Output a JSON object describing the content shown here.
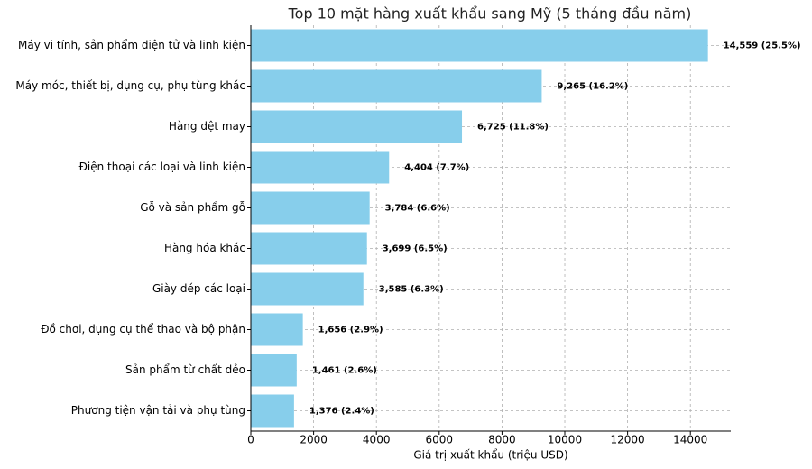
{
  "chart_data": {
    "type": "hbar",
    "title": "Top 10 mặt hàng xuất khẩu sang Mỹ (5 tháng đầu năm)",
    "x_label": "Giá trị xuất khẩu (triệu USD)",
    "categories": [
      "Máy vi tính, sản phẩm điện tử và linh kiện",
      "Máy móc, thiết bị, dụng cụ, phụ tùng khác",
      "Hàng dệt may",
      "Điện thoại các loại và linh kiện",
      "Gỗ và sản phẩm gỗ",
      "Hàng hóa khác",
      "Giày dép các loại",
      "Đồ chơi, dụng cụ thể thao và bộ phận",
      "Sản phẩm từ chất dẻo",
      "Phương tiện vận tải và phụ tùng"
    ],
    "values": [
      14559,
      9265,
      6725,
      4404,
      3784,
      3699,
      3585,
      1656,
      1461,
      1376
    ],
    "value_labels": [
      "14,559 (25.5%)",
      "9,265 (16.2%)",
      "6,725 (11.8%)",
      "4,404 (7.7%)",
      "3,784 (6.6%)",
      "3,699 (6.5%)",
      "3,585 (6.3%)",
      "1,656 (2.9%)",
      "1,461 (2.6%)",
      "1,376 (2.4%)"
    ],
    "color": "#87ceeb",
    "xlim": [
      0,
      15287
    ],
    "xticks": [
      0,
      2000,
      4000,
      6000,
      8000,
      10000,
      12000,
      14000
    ],
    "grid": true
  }
}
